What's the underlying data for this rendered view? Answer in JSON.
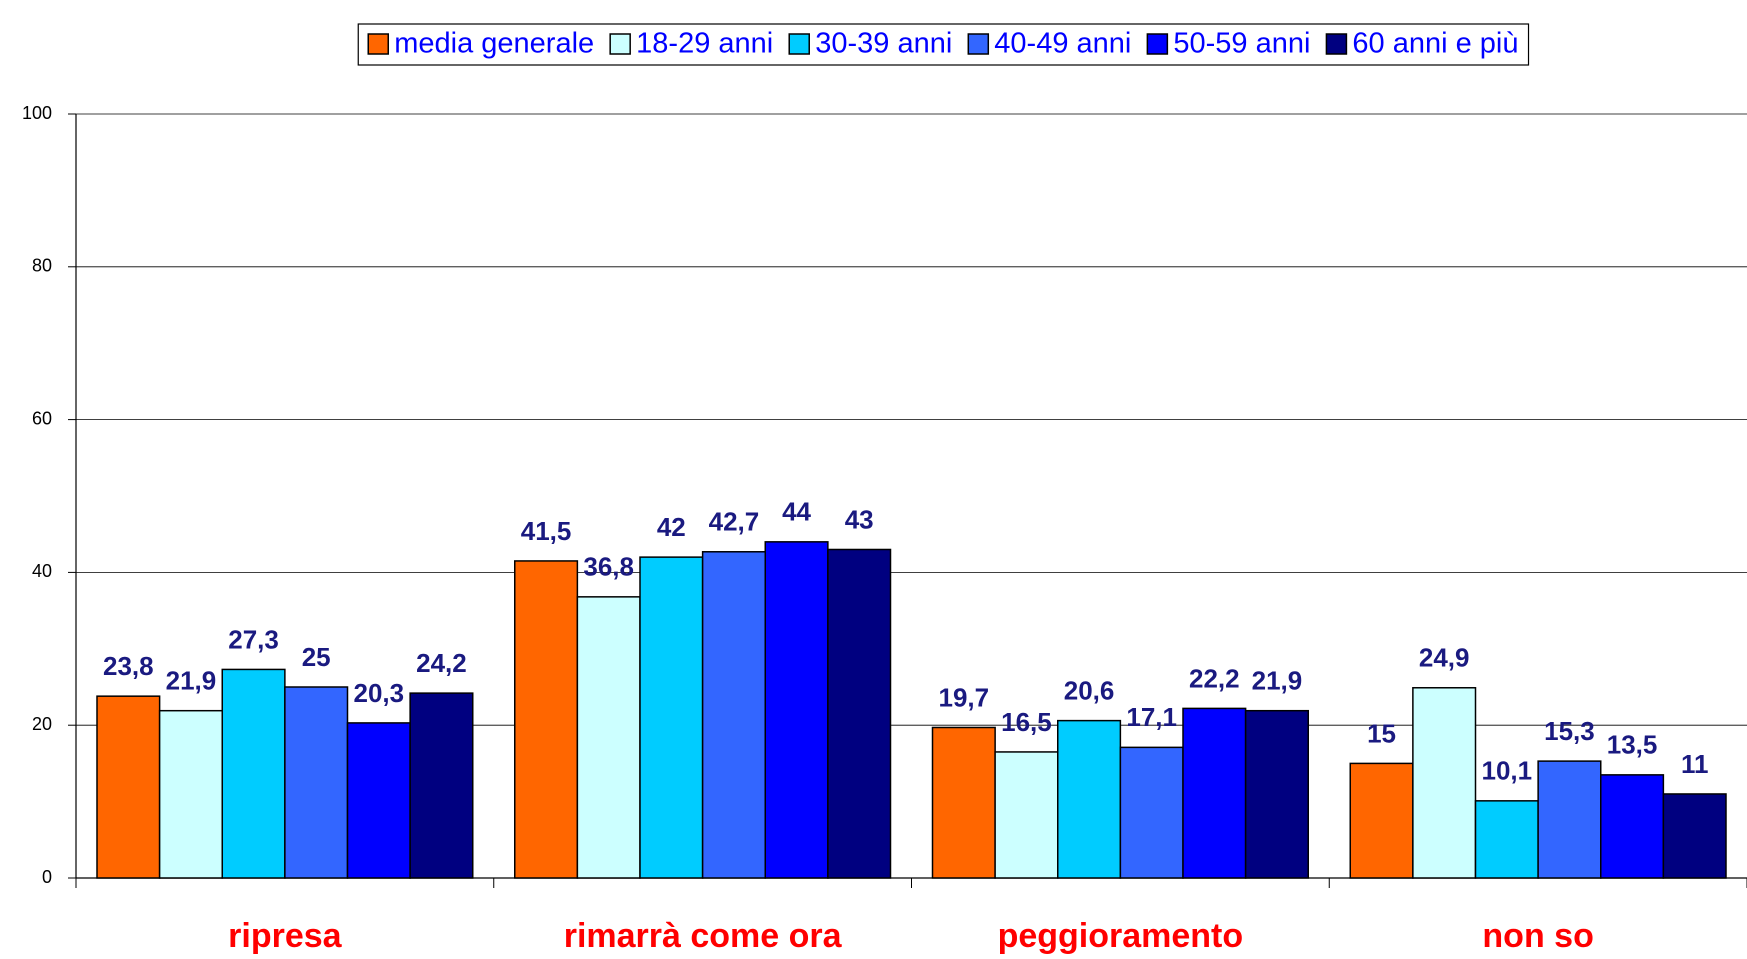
{
  "chart_data": {
    "type": "bar",
    "categories": [
      "ripresa",
      "rimarrà come ora",
      "peggioramento",
      "non so"
    ],
    "series": [
      {
        "name": "media generale",
        "color": "#ff6600",
        "values": [
          23.8,
          41.5,
          19.7,
          15
        ],
        "value_labels": [
          "23,8",
          "41,5",
          "19,7",
          "15"
        ]
      },
      {
        "name": "18-29 anni",
        "color": "#ccffff",
        "values": [
          21.9,
          36.8,
          16.5,
          24.9
        ],
        "value_labels": [
          "21,9",
          "36,8",
          "16,5",
          "24,9"
        ]
      },
      {
        "name": "30-39 anni",
        "color": "#00ccff",
        "values": [
          27.3,
          42,
          20.6,
          10.1
        ],
        "value_labels": [
          "27,3",
          "42",
          "20,6",
          "10,1"
        ]
      },
      {
        "name": "40-49 anni",
        "color": "#3366ff",
        "values": [
          25,
          42.7,
          17.1,
          15.3
        ],
        "value_labels": [
          "25",
          "42,7",
          "17,1",
          "15,3"
        ]
      },
      {
        "name": "50-59 anni",
        "color": "#0000ff",
        "values": [
          20.3,
          44,
          22.2,
          13.5
        ],
        "value_labels": [
          "20,3",
          "44",
          "22,2",
          "13,5"
        ]
      },
      {
        "name": "60 anni e più",
        "color": "#000080",
        "values": [
          24.2,
          43,
          21.9,
          11
        ],
        "value_labels": [
          "24,2",
          "43",
          "21,9",
          "11"
        ]
      }
    ],
    "ylim": [
      0,
      100
    ],
    "yticks": [
      0,
      20,
      40,
      60,
      80,
      100
    ],
    "grid": true,
    "legend": "top"
  }
}
